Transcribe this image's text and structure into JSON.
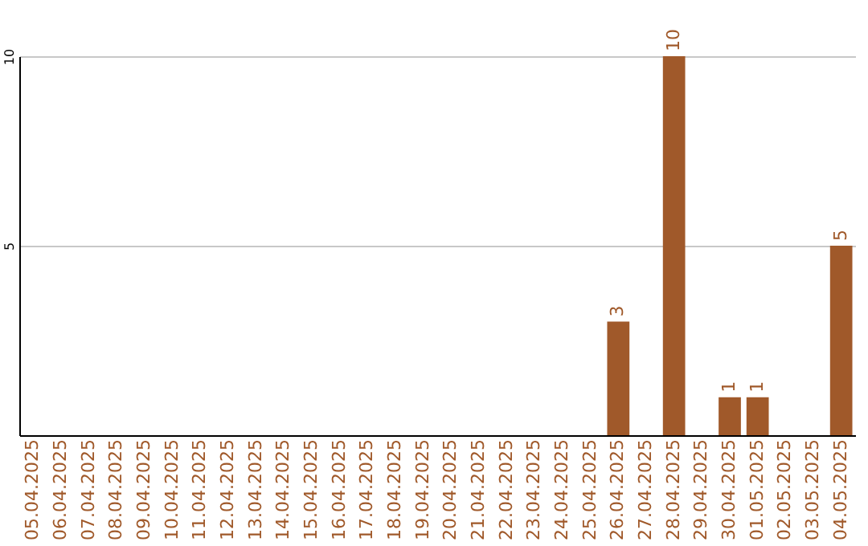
{
  "chart_data": {
    "type": "bar",
    "categories": [
      "05.04.2025",
      "06.04.2025",
      "07.04.2025",
      "08.04.2025",
      "09.04.2025",
      "10.04.2025",
      "11.04.2025",
      "12.04.2025",
      "13.04.2025",
      "14.04.2025",
      "15.04.2025",
      "16.04.2025",
      "17.04.2025",
      "18.04.2025",
      "19.04.2025",
      "20.04.2025",
      "21.04.2025",
      "22.04.2025",
      "23.04.2025",
      "24.04.2025",
      "25.04.2025",
      "26.04.2025",
      "27.04.2025",
      "28.04.2025",
      "29.04.2025",
      "30.04.2025",
      "01.05.2025",
      "02.05.2025",
      "03.05.2025",
      "04.05.2025"
    ],
    "values": [
      0,
      0,
      0,
      0,
      0,
      0,
      0,
      0,
      0,
      0,
      0,
      0,
      0,
      0,
      0,
      0,
      0,
      0,
      0,
      0,
      0,
      3,
      0,
      10,
      0,
      1,
      1,
      0,
      0,
      5
    ],
    "value_labels": [
      null,
      null,
      null,
      null,
      null,
      null,
      null,
      null,
      null,
      null,
      null,
      null,
      null,
      null,
      null,
      null,
      null,
      null,
      null,
      null,
      null,
      "3",
      null,
      "10",
      null,
      "1",
      "1",
      null,
      null,
      "5"
    ],
    "color": "#a0592a",
    "ylim": [
      0,
      10
    ],
    "yticks": [
      5,
      10
    ],
    "grid": "y"
  }
}
